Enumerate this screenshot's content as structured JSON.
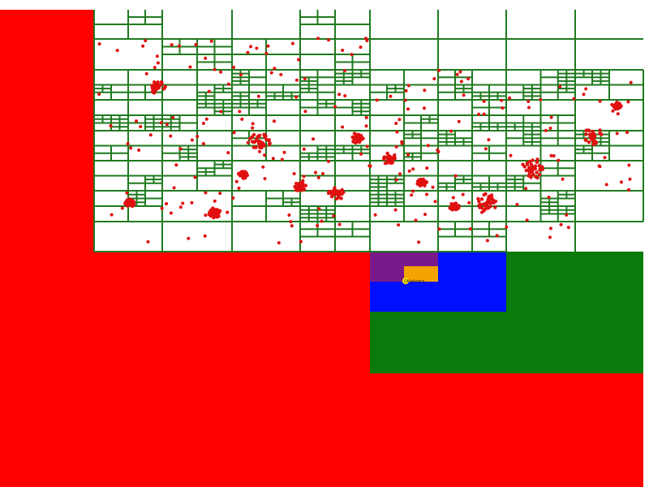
{
  "colors": {
    "background": "#ffffff",
    "grid": "#1f7a1f",
    "points": "#e01010",
    "level_red": "#ff0000",
    "level_green": "#0a7a0a",
    "level_blue": "#0010ff",
    "level_purple": "#7a1a8a",
    "level_orange": "#f5a300",
    "query_point": "#ffe600"
  },
  "highlight": {
    "label": "Oklahoma",
    "icon": "query-point-icon"
  }
}
